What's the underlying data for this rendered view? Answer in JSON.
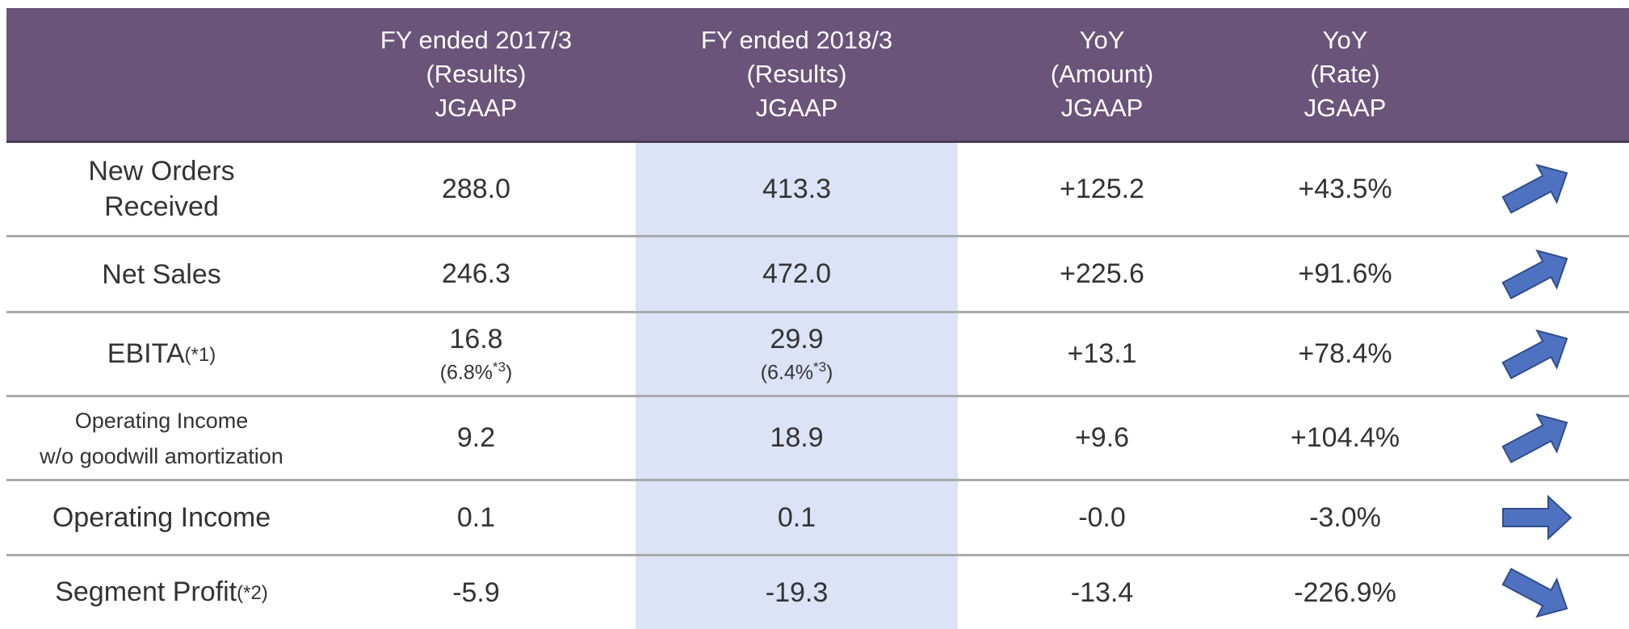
{
  "table": {
    "header": [
      [
        "FY ended 2017/3",
        "(Results)",
        "JGAAP"
      ],
      [
        "FY ended 2018/3",
        "(Results)",
        "JGAAP"
      ],
      [
        "YoY",
        "(Amount)",
        "JGAAP"
      ],
      [
        "YoY",
        "(Rate)",
        "JGAAP"
      ]
    ],
    "rows": [
      {
        "label": [
          "New Orders",
          "Received"
        ],
        "values": [
          "288.0",
          "413.3",
          "+125.2",
          "+43.5%"
        ]
      },
      {
        "label": [
          "Net Sales"
        ],
        "values": [
          "246.3",
          "472.0",
          "+225.6",
          "+91.6%"
        ]
      },
      {
        "label": [
          "EBITA"
        ],
        "note": "(*1)",
        "values": [
          "16.8",
          "29.9",
          "+13.1",
          "+78.4%"
        ],
        "sub": [
          {
            "before": "(6.8%",
            "sup": "*3",
            "after": ")"
          },
          {
            "before": "(6.4%",
            "sup": "*3",
            "after": ")"
          }
        ]
      },
      {
        "label": [
          "Operating Income",
          "w/o goodwill amortization"
        ],
        "values": [
          "9.2",
          "18.9",
          "+9.6",
          "+104.4%"
        ]
      },
      {
        "label": [
          "Operating Income"
        ],
        "values": [
          "0.1",
          "0.1",
          "-0.0",
          "-3.0%"
        ]
      },
      {
        "label": [
          "Segment Profit"
        ],
        "note": "(*2)",
        "values": [
          "-5.9",
          "-19.3",
          "-13.4",
          "-226.9%"
        ]
      }
    ]
  }
}
